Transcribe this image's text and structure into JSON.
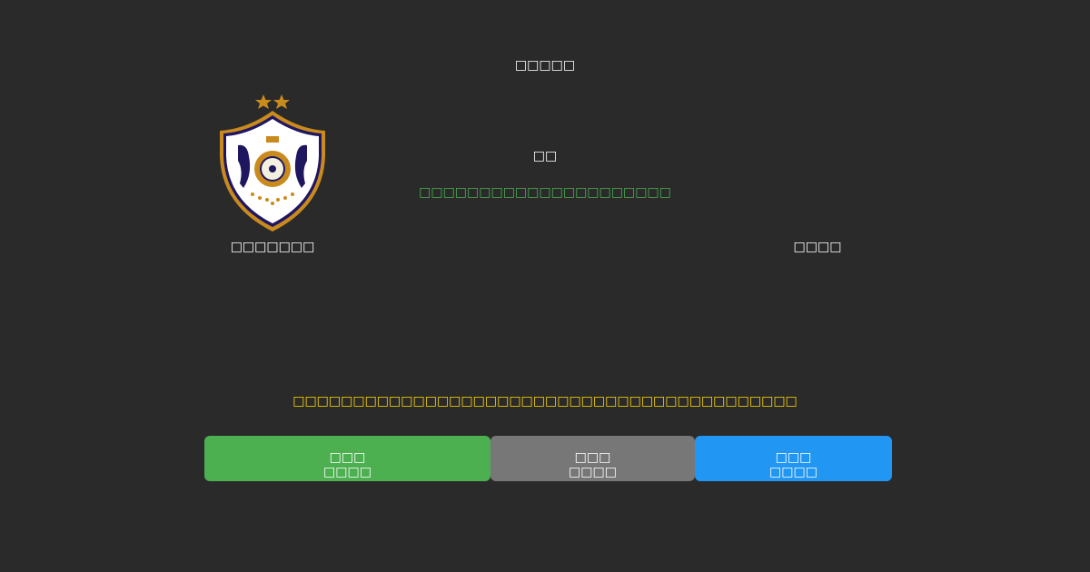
{
  "header": {
    "title": "□□□□□"
  },
  "match": {
    "home_team": {
      "name": "□□□□□□□",
      "logo": "qarabag-fk-crest"
    },
    "away_team": {
      "name": "□□□□"
    },
    "center_label": "□□",
    "status_text": "□□□□□□□□□□□□□□□□□□□□□",
    "status_color": "#4caf50"
  },
  "notice": {
    "text": "□□□□□□□□□□□□□□□□□□□□□□□□□□□□□□□□□□□□□□□□□□",
    "color": "#ffd700"
  },
  "buttons": [
    {
      "line1": "□□□",
      "line2": "□□□□",
      "color": "#4caf50"
    },
    {
      "line1": "□□□",
      "line2": "□□□□",
      "color": "#777777"
    },
    {
      "line1": "□□□",
      "line2": "□□□□",
      "color": "#2196f3"
    }
  ]
}
